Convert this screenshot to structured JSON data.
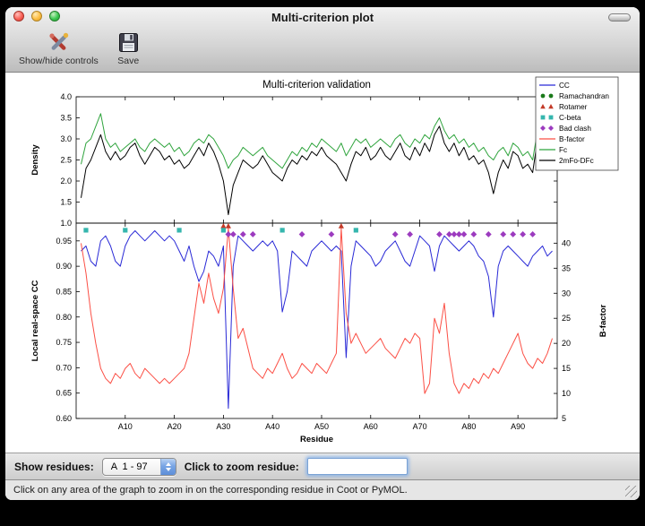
{
  "window": {
    "title": "Multi-criterion plot"
  },
  "icons": {
    "close": "close-icon",
    "minimize": "minimize-icon",
    "zoom": "zoom-icon",
    "toolbar_toggle": "toolbar-capsule-icon",
    "controls": "tools-icon",
    "save": "save-icon"
  },
  "toolbar": {
    "items": [
      {
        "label": "Show/hide controls",
        "icon": "tools-icon"
      },
      {
        "label": "Save",
        "icon": "save-icon"
      }
    ]
  },
  "controls": {
    "show_residues_label": "Show residues:",
    "residue_range_value": "A  1 - 97",
    "zoom_label": "Click to zoom residue:",
    "zoom_input_value": ""
  },
  "status_bar": {
    "text": "Click on any area of the graph to zoom in on the corresponding residue in Coot or PyMOL."
  },
  "chart_data": {
    "type": "line",
    "title": "Multi-criterion validation",
    "xlabel": "Residue",
    "x_range": [
      0,
      98
    ],
    "x_start_residue": 1,
    "x_tick_values": [
      10,
      20,
      30,
      40,
      50,
      60,
      70,
      80,
      90
    ],
    "x_tick_labels": [
      "A10",
      "A20",
      "A30",
      "A40",
      "A50",
      "A60",
      "A70",
      "A80",
      "A90"
    ],
    "legend_position": "upper right",
    "legend": [
      {
        "label": "CC",
        "type": "line",
        "color": "#2929d6"
      },
      {
        "label": "Ramachandran",
        "type": "marker",
        "shape": "circle",
        "color": "#1a7a1a"
      },
      {
        "label": "Rotamer",
        "type": "marker",
        "shape": "triangle",
        "color": "#c33a28"
      },
      {
        "label": "C-beta",
        "type": "marker",
        "shape": "square",
        "color": "#35b6ae"
      },
      {
        "label": "Bad clash",
        "type": "marker",
        "shape": "diamond",
        "color": "#9c3bbf"
      },
      {
        "label": "B-factor",
        "type": "line",
        "color": "#fb4f45"
      },
      {
        "label": "Fc",
        "type": "line",
        "color": "#2fa43d"
      },
      {
        "label": "2mFo-DFc",
        "type": "line",
        "color": "#000000"
      }
    ],
    "panels": [
      {
        "ylabel": "Density",
        "ylim": [
          1.0,
          4.0
        ],
        "ytick_values": [
          1.0,
          1.5,
          2.0,
          2.5,
          3.0,
          3.5,
          4.0
        ],
        "ytick_labels": [
          "1.0",
          "1.5",
          "2.0",
          "2.5",
          "3.0",
          "3.5",
          "4.0"
        ],
        "series": [
          {
            "name": "Fc",
            "color": "#2fa43d",
            "values": [
              2.4,
              2.9,
              3.0,
              3.3,
              3.6,
              3.0,
              2.8,
              2.9,
              2.7,
              2.8,
              2.9,
              3.0,
              2.8,
              2.7,
              2.9,
              3.0,
              2.9,
              2.8,
              2.9,
              2.7,
              2.8,
              2.6,
              2.7,
              2.9,
              3.0,
              2.9,
              3.1,
              3.0,
              2.8,
              2.6,
              2.3,
              2.5,
              2.6,
              2.8,
              2.7,
              2.6,
              2.7,
              2.8,
              2.6,
              2.5,
              2.4,
              2.3,
              2.5,
              2.7,
              2.6,
              2.8,
              2.7,
              2.9,
              2.8,
              3.0,
              2.9,
              2.8,
              2.7,
              2.9,
              2.6,
              2.8,
              3.0,
              2.9,
              3.0,
              2.8,
              2.9,
              3.0,
              2.9,
              2.8,
              3.0,
              3.1,
              2.9,
              2.8,
              3.0,
              2.9,
              3.1,
              3.0,
              3.3,
              3.5,
              3.2,
              3.0,
              3.1,
              2.9,
              3.0,
              2.8,
              2.9,
              2.7,
              2.8,
              2.6,
              2.5,
              2.7,
              2.8,
              2.6,
              2.9,
              2.8,
              2.6,
              2.7,
              2.5,
              3.2,
              3.4,
              3.0,
              3.1
            ]
          },
          {
            "name": "2mFo-DFc",
            "color": "#000000",
            "values": [
              1.6,
              2.3,
              2.5,
              2.8,
              3.1,
              2.7,
              2.5,
              2.7,
              2.5,
              2.6,
              2.8,
              2.9,
              2.6,
              2.4,
              2.6,
              2.8,
              2.7,
              2.5,
              2.6,
              2.4,
              2.5,
              2.3,
              2.4,
              2.6,
              2.8,
              2.6,
              2.9,
              2.7,
              2.4,
              2.0,
              1.2,
              1.9,
              2.2,
              2.5,
              2.4,
              2.3,
              2.4,
              2.6,
              2.4,
              2.2,
              2.1,
              2.0,
              2.3,
              2.5,
              2.4,
              2.6,
              2.5,
              2.7,
              2.6,
              2.8,
              2.6,
              2.5,
              2.4,
              2.2,
              2.0,
              2.4,
              2.7,
              2.6,
              2.8,
              2.5,
              2.6,
              2.8,
              2.6,
              2.5,
              2.7,
              2.9,
              2.6,
              2.5,
              2.8,
              2.6,
              2.9,
              2.7,
              3.1,
              3.3,
              2.9,
              2.7,
              2.9,
              2.6,
              2.8,
              2.5,
              2.6,
              2.4,
              2.5,
              2.2,
              1.7,
              2.2,
              2.5,
              2.3,
              2.7,
              2.6,
              2.3,
              2.4,
              2.2,
              3.0,
              3.2,
              2.7,
              2.9
            ]
          }
        ]
      },
      {
        "ylabel": "Local real-space CC",
        "ylim": [
          0.6,
          0.985
        ],
        "ytick_values": [
          0.6,
          0.65,
          0.7,
          0.75,
          0.8,
          0.85,
          0.9,
          0.95
        ],
        "ytick_labels": [
          "0.60",
          "0.65",
          "0.70",
          "0.75",
          "0.80",
          "0.85",
          "0.90",
          "0.95"
        ],
        "ylabel_right": "B-factor",
        "ylim_right": [
          5,
          44
        ],
        "ytick_right_values": [
          5,
          10,
          15,
          20,
          25,
          30,
          35,
          40
        ],
        "ytick_right_labels": [
          "5",
          "10",
          "15",
          "20",
          "25",
          "30",
          "35",
          "40"
        ],
        "series": [
          {
            "name": "CC",
            "axis": "left",
            "color": "#2929d6",
            "values": [
              0.93,
              0.94,
              0.91,
              0.9,
              0.95,
              0.96,
              0.94,
              0.91,
              0.9,
              0.94,
              0.96,
              0.97,
              0.96,
              0.95,
              0.96,
              0.97,
              0.96,
              0.95,
              0.96,
              0.95,
              0.93,
              0.91,
              0.94,
              0.9,
              0.87,
              0.89,
              0.93,
              0.92,
              0.9,
              0.94,
              0.62,
              0.9,
              0.96,
              0.95,
              0.94,
              0.93,
              0.94,
              0.95,
              0.94,
              0.95,
              0.93,
              0.81,
              0.85,
              0.93,
              0.92,
              0.91,
              0.9,
              0.93,
              0.94,
              0.95,
              0.94,
              0.93,
              0.94,
              0.93,
              0.72,
              0.9,
              0.95,
              0.94,
              0.93,
              0.92,
              0.9,
              0.91,
              0.93,
              0.94,
              0.95,
              0.93,
              0.91,
              0.9,
              0.93,
              0.96,
              0.95,
              0.94,
              0.89,
              0.94,
              0.96,
              0.95,
              0.94,
              0.93,
              0.94,
              0.95,
              0.94,
              0.92,
              0.91,
              0.88,
              0.8,
              0.9,
              0.93,
              0.94,
              0.93,
              0.92,
              0.91,
              0.9,
              0.92,
              0.93,
              0.94,
              0.92,
              0.93
            ]
          },
          {
            "name": "B-factor",
            "axis": "right",
            "color": "#fb4f45",
            "values": [
              40,
              34,
              26,
              20,
              15,
              13,
              12,
              14,
              13,
              15,
              16,
              14,
              13,
              15,
              14,
              13,
              12,
              13,
              12,
              13,
              14,
              15,
              18,
              25,
              32,
              28,
              34,
              29,
              26,
              31,
              43,
              31,
              21,
              23,
              19,
              15,
              14,
              13,
              15,
              14,
              16,
              18,
              15,
              13,
              14,
              16,
              15,
              14,
              16,
              15,
              14,
              16,
              18,
              43,
              26,
              20,
              22,
              20,
              18,
              19,
              20,
              21,
              19,
              18,
              17,
              19,
              21,
              20,
              22,
              21,
              10,
              12,
              25,
              22,
              28,
              18,
              12,
              10,
              12,
              11,
              13,
              12,
              14,
              13,
              15,
              14,
              16,
              18,
              20,
              22,
              18,
              16,
              15,
              17,
              16,
              18,
              21
            ]
          }
        ],
        "markers": [
          {
            "name": "Rotamer",
            "shape": "triangle",
            "color": "#c33a28",
            "y": 0.979,
            "residues": [
              30,
              31,
              54
            ]
          },
          {
            "name": "C-beta",
            "shape": "square",
            "color": "#35b6ae",
            "y": 0.971,
            "residues": [
              2,
              10,
              21,
              30,
              42,
              57
            ]
          },
          {
            "name": "Bad clash",
            "shape": "diamond",
            "color": "#9c3bbf",
            "y": 0.963,
            "residues": [
              31,
              32,
              34,
              36,
              46,
              52,
              65,
              68,
              74,
              76,
              77,
              78,
              79,
              81,
              84,
              87,
              89,
              91,
              93
            ]
          }
        ]
      }
    ]
  }
}
